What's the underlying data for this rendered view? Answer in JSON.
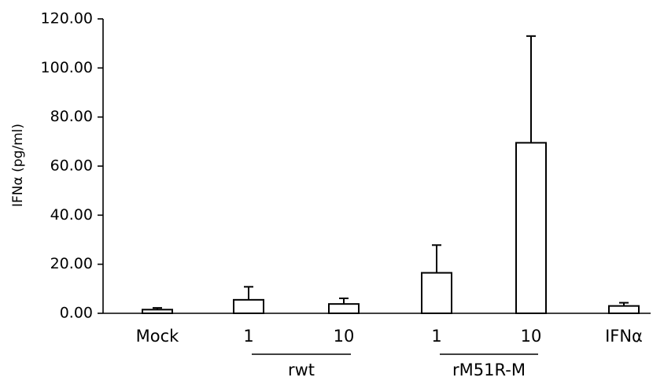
{
  "chart_data": {
    "type": "bar",
    "title": "",
    "xlabel": "",
    "ylabel": "IFNα (pg/ml)",
    "ylim": [
      0,
      120
    ],
    "yticks": [
      "0.00",
      "20.00",
      "40.00",
      "60.00",
      "80.00",
      "100.00",
      "120.00"
    ],
    "categories": [
      "Mock",
      "1",
      "10",
      "1",
      "10",
      "IFNα"
    ],
    "values": [
      1.5,
      5.5,
      3.8,
      16.5,
      69.5,
      3.0
    ],
    "errors": [
      0.7,
      5.3,
      2.3,
      11.3,
      43.5,
      1.3
    ],
    "groups": [
      {
        "label": "rwt",
        "start": 1,
        "end": 2
      },
      {
        "label": "rM51R-M",
        "start": 3,
        "end": 4
      }
    ],
    "bar_fill": "#ffffff",
    "bar_stroke": "#000000",
    "grid": false,
    "legend": "none"
  }
}
